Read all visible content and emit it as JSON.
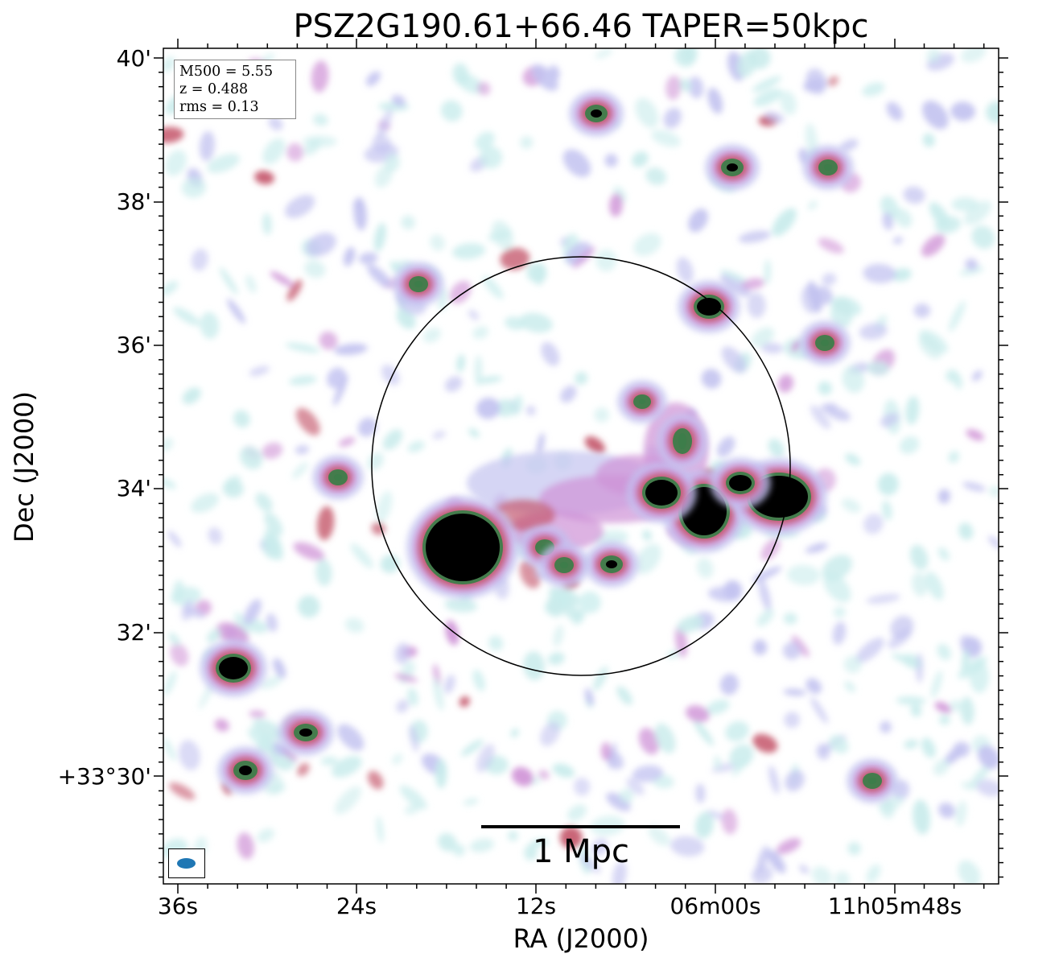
{
  "title": "PSZ2G190.61+66.46 TAPER=50kpc",
  "info_box": {
    "mass": "M500 = 5.55",
    "redshift": "z = 0.488",
    "rms": "rms = 0.13"
  },
  "axes": {
    "x_label": "RA (J2000)",
    "y_label": "Dec (J2000)",
    "x_ticks": [
      "36s",
      "24s",
      "12s",
      "06m00s",
      "11h05m48s"
    ],
    "y_ticks": [
      "40'",
      "38'",
      "36'",
      "34'",
      "32'",
      "+33°30'"
    ]
  },
  "scale_bar": {
    "label": "1 Mpc"
  },
  "colors": {
    "faint_emission": "#c9ecec",
    "low_emission": "#c3c3f0",
    "mid_emission": "#cf92d6",
    "high_emission": "#c5596d",
    "peak_emission": "#3d7d4a",
    "saturated": "#000000",
    "beam": "#1f77b4"
  }
}
